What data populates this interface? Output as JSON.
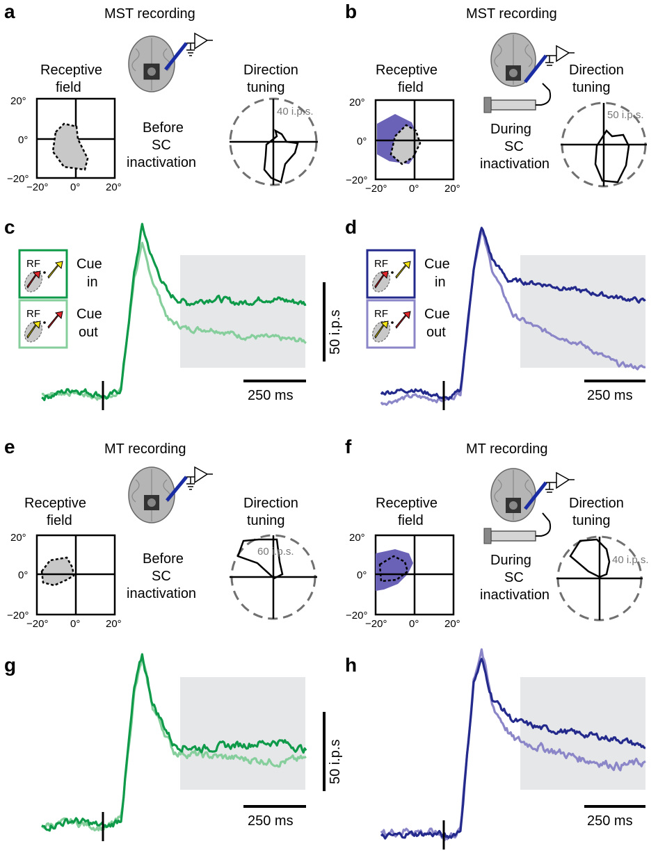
{
  "panel_letters": [
    "a",
    "b",
    "c",
    "d",
    "e",
    "f",
    "g",
    "h"
  ],
  "recording_titles": {
    "a": "MST recording",
    "b": "MST recording",
    "e": "MT recording",
    "f": "MT recording"
  },
  "rf_label": {
    "a": [
      "Receptive",
      "field"
    ],
    "b": [
      "Receptive",
      "field"
    ],
    "e": [
      "Receptive",
      "field"
    ],
    "f": [
      "Receptive",
      "field"
    ]
  },
  "dt_label": [
    "Direction",
    "tuning"
  ],
  "condition": {
    "before": [
      "Before",
      "SC",
      "inactivation"
    ],
    "during": [
      "During",
      "SC",
      "inactivation"
    ]
  },
  "ticks": {
    "y": [
      "20°",
      "0°",
      "−20°"
    ],
    "x": [
      "−20°",
      "0°",
      "20°"
    ]
  },
  "tuning_scale": {
    "a": "40 i.p.s.",
    "b": "50 i.p.s.",
    "e": "60 i.p.s.",
    "f": "40 i.p.s."
  },
  "legend": {
    "rf": "RF",
    "cue_in": [
      "Cue",
      "in"
    ],
    "cue_out": [
      "Cue",
      "out"
    ]
  },
  "scalebars": {
    "rate": "50 i.p.s",
    "time": "250 ms"
  },
  "colors": {
    "green_in": "#0f9a4a",
    "green_out": "#86cf9c",
    "blue_in": "#232a8c",
    "blue_out": "#8b86c8",
    "rf_during": "#6a62b6",
    "rf_before": "#c8c8c8",
    "shade": "#e6e7e9",
    "arrow_red": "#e0262a",
    "arrow_yellow": "#f5e514",
    "dashed": "#707070"
  },
  "chart_data": [
    {
      "panel": "c",
      "type": "line",
      "area": "MST",
      "condition": "before SC inactivation",
      "series": [
        {
          "shape": [
            [
              0,
              0
            ],
            [
              0.12,
              0.05
            ],
            [
              0.22,
              0.02
            ],
            [
              0.25,
              0
            ],
            [
              0.3,
              0.05
            ],
            [
              0.35,
              0.72
            ],
            [
              0.38,
              1.0
            ],
            [
              0.42,
              0.8
            ],
            [
              0.48,
              0.6
            ],
            [
              0.55,
              0.55
            ],
            [
              0.65,
              0.58
            ],
            [
              0.75,
              0.55
            ],
            [
              0.85,
              0.58
            ],
            [
              1.0,
              0.55
            ]
          ],
          "noise": 0.035
        },
        {
          "shape": [
            [
              0,
              0.02
            ],
            [
              0.12,
              0.03
            ],
            [
              0.22,
              0.0
            ],
            [
              0.25,
              0
            ],
            [
              0.3,
              0.05
            ],
            [
              0.35,
              0.7
            ],
            [
              0.38,
              0.88
            ],
            [
              0.42,
              0.68
            ],
            [
              0.48,
              0.45
            ],
            [
              0.55,
              0.4
            ],
            [
              0.65,
              0.4
            ],
            [
              0.75,
              0.36
            ],
            [
              0.85,
              0.35
            ],
            [
              1.0,
              0.33
            ]
          ],
          "noise": 0.03
        }
      ]
    },
    {
      "panel": "d",
      "type": "line",
      "area": "MST",
      "condition": "during SC inactivation",
      "series": [
        {
          "shape": [
            [
              0,
              0.04
            ],
            [
              0.12,
              0.06
            ],
            [
              0.22,
              0.02
            ],
            [
              0.25,
              0
            ],
            [
              0.3,
              0.05
            ],
            [
              0.35,
              0.75
            ],
            [
              0.38,
              0.98
            ],
            [
              0.42,
              0.8
            ],
            [
              0.48,
              0.68
            ],
            [
              0.6,
              0.66
            ],
            [
              0.75,
              0.62
            ],
            [
              0.9,
              0.58
            ],
            [
              1.0,
              0.56
            ]
          ],
          "noise": 0.025
        },
        {
          "shape": [
            [
              0,
              -0.02
            ],
            [
              0.12,
              0.02
            ],
            [
              0.22,
              0.0
            ],
            [
              0.25,
              0.0
            ],
            [
              0.3,
              0.04
            ],
            [
              0.35,
              0.75
            ],
            [
              0.38,
              0.97
            ],
            [
              0.42,
              0.74
            ],
            [
              0.5,
              0.48
            ],
            [
              0.6,
              0.4
            ],
            [
              0.75,
              0.32
            ],
            [
              0.9,
              0.2
            ],
            [
              1.0,
              0.18
            ]
          ],
          "noise": 0.025
        }
      ]
    },
    {
      "panel": "g",
      "type": "line",
      "area": "MT",
      "condition": "before SC inactivation",
      "series": [
        {
          "shape": [
            [
              0,
              0
            ],
            [
              0.12,
              0.04
            ],
            [
              0.22,
              0.01
            ],
            [
              0.25,
              0
            ],
            [
              0.3,
              0.05
            ],
            [
              0.35,
              0.8
            ],
            [
              0.38,
              1.0
            ],
            [
              0.42,
              0.72
            ],
            [
              0.5,
              0.48
            ],
            [
              0.6,
              0.46
            ],
            [
              0.75,
              0.48
            ],
            [
              0.9,
              0.5
            ],
            [
              1.0,
              0.45
            ]
          ],
          "noise": 0.04
        },
        {
          "shape": [
            [
              0,
              0.01
            ],
            [
              0.12,
              0.03
            ],
            [
              0.22,
              0.0
            ],
            [
              0.25,
              0
            ],
            [
              0.3,
              0.05
            ],
            [
              0.35,
              0.78
            ],
            [
              0.38,
              0.98
            ],
            [
              0.42,
              0.7
            ],
            [
              0.5,
              0.44
            ],
            [
              0.6,
              0.42
            ],
            [
              0.75,
              0.4
            ],
            [
              0.9,
              0.38
            ],
            [
              1.0,
              0.4
            ]
          ],
          "noise": 0.04
        }
      ]
    },
    {
      "panel": "h",
      "type": "line",
      "area": "MT",
      "condition": "during SC inactivation",
      "series": [
        {
          "shape": [
            [
              0,
              0.0
            ],
            [
              0.1,
              0.02
            ],
            [
              0.22,
              0.02
            ],
            [
              0.25,
              0
            ],
            [
              0.3,
              0.04
            ],
            [
              0.35,
              0.82
            ],
            [
              0.38,
              0.94
            ],
            [
              0.42,
              0.74
            ],
            [
              0.5,
              0.62
            ],
            [
              0.6,
              0.58
            ],
            [
              0.75,
              0.55
            ],
            [
              0.9,
              0.52
            ],
            [
              1.0,
              0.48
            ]
          ],
          "noise": 0.03
        },
        {
          "shape": [
            [
              0,
              0.02
            ],
            [
              0.1,
              0.04
            ],
            [
              0.22,
              0.02
            ],
            [
              0.25,
              0
            ],
            [
              0.3,
              0.04
            ],
            [
              0.35,
              0.84
            ],
            [
              0.38,
              1.0
            ],
            [
              0.42,
              0.7
            ],
            [
              0.5,
              0.52
            ],
            [
              0.6,
              0.48
            ],
            [
              0.75,
              0.42
            ],
            [
              0.9,
              0.38
            ],
            [
              1.0,
              0.4
            ]
          ],
          "noise": 0.04
        }
      ]
    }
  ]
}
